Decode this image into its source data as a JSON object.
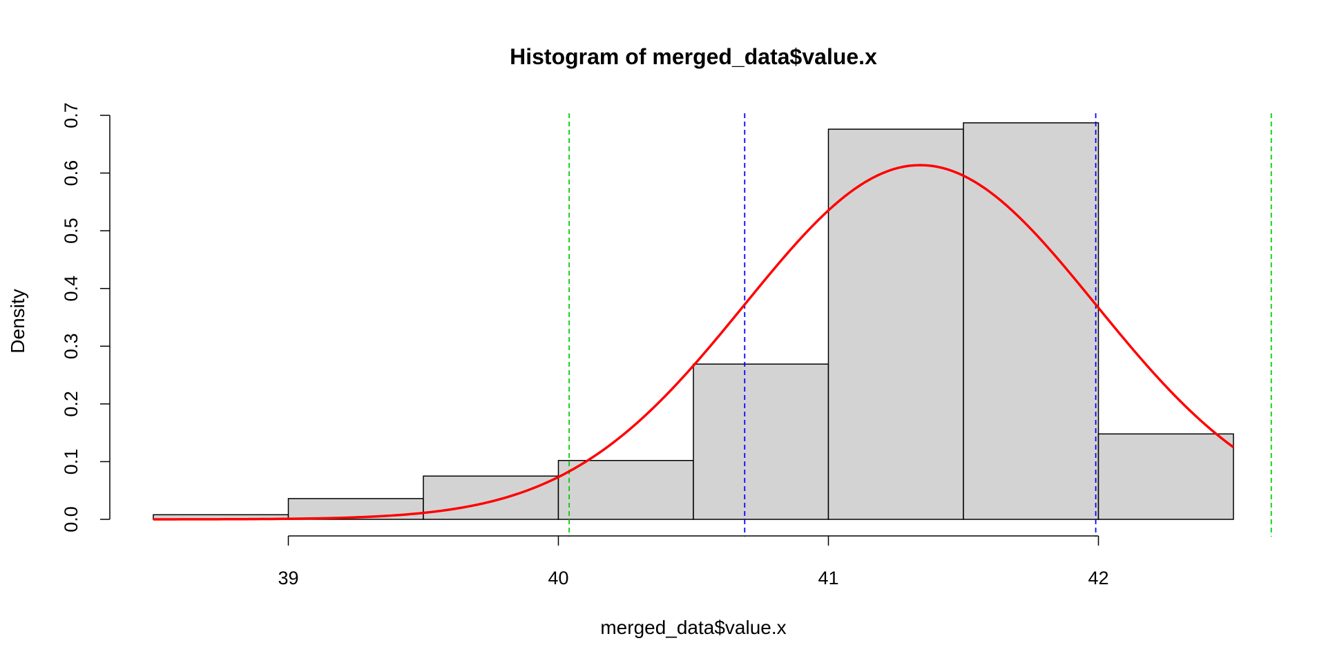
{
  "chart_data": {
    "type": "bar",
    "title": "Histogram of merged_data$value.x",
    "xlabel": "merged_data$value.x",
    "ylabel": "Density",
    "xlim": [
      38.5,
      42.5
    ],
    "ylim": [
      0,
      0.7
    ],
    "x_ticks": [
      "39",
      "40",
      "41",
      "42"
    ],
    "y_ticks": [
      "0.0",
      "0.1",
      "0.2",
      "0.3",
      "0.4",
      "0.5",
      "0.6",
      "0.7"
    ],
    "bins": [
      {
        "start": 38.5,
        "end": 39.0,
        "density": 0.008
      },
      {
        "start": 39.0,
        "end": 39.5,
        "density": 0.036
      },
      {
        "start": 39.5,
        "end": 40.0,
        "density": 0.075
      },
      {
        "start": 40.0,
        "end": 40.5,
        "density": 0.102
      },
      {
        "start": 40.5,
        "end": 41.0,
        "density": 0.269
      },
      {
        "start": 41.0,
        "end": 41.5,
        "density": 0.676
      },
      {
        "start": 41.5,
        "end": 42.0,
        "density": 0.687
      },
      {
        "start": 42.0,
        "end": 42.5,
        "density": 0.148
      }
    ],
    "bar_fill": "#d3d3d3",
    "density_curve": {
      "type": "normal",
      "mean": 41.34,
      "sd": 0.65,
      "color": "#ff0000",
      "x_range": [
        38.5,
        42.5
      ]
    },
    "vertical_lines": [
      {
        "x": 40.04,
        "color": "#00cc00",
        "style": "dashed"
      },
      {
        "x": 40.69,
        "color": "#0000ff",
        "style": "dashed"
      },
      {
        "x": 41.99,
        "color": "#0000ff",
        "style": "dashed"
      },
      {
        "x": 42.64,
        "color": "#00cc00",
        "style": "dashed"
      }
    ],
    "grid": false
  }
}
